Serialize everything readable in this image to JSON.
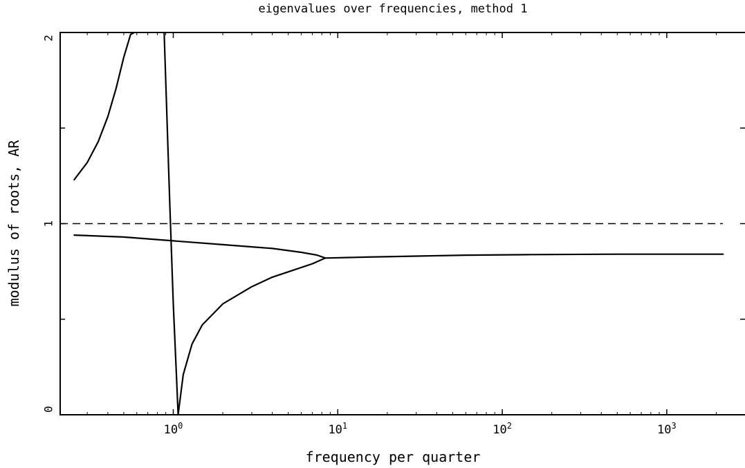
{
  "chart_data": {
    "type": "line",
    "title": "eigenvalues over frequencies, method 1",
    "xlabel": "frequency per quarter",
    "ylabel": "modulus of roots, AR",
    "x_scale": "log",
    "xlim": [
      0.25,
      2400
    ],
    "ylim": [
      0,
      2
    ],
    "x_ticks": [
      {
        "value": 1,
        "label": "10",
        "exp": "0"
      },
      {
        "value": 10,
        "label": "10",
        "exp": "1"
      },
      {
        "value": 100,
        "label": "10",
        "exp": "2"
      },
      {
        "value": 1000,
        "label": "10",
        "exp": "3"
      }
    ],
    "y_ticks": [
      {
        "value": 0,
        "label": "0"
      },
      {
        "value": 1,
        "label": "1"
      },
      {
        "value": 2,
        "label": "2"
      }
    ],
    "y_minor_ticks": [
      0.5,
      1.5
    ],
    "reference_line": {
      "y": 1,
      "style": "dashed"
    },
    "grid": false,
    "series": [
      {
        "x": [
          0.25,
          0.3,
          0.35,
          0.4,
          0.45,
          0.5,
          0.55,
          0.58
        ],
        "y": [
          1.23,
          1.32,
          1.43,
          1.56,
          1.71,
          1.87,
          1.99,
          2.0
        ]
      },
      {
        "x": [
          0.88,
          0.95,
          1.0,
          1.05,
          1.07
        ],
        "y": [
          2.0,
          1.13,
          0.58,
          0.17,
          0.0
        ]
      },
      {
        "x": [
          1.07,
          1.15,
          1.3,
          1.5,
          2.0,
          3.0,
          4.0,
          5.5,
          7.0,
          8.4
        ],
        "y": [
          0.0,
          0.21,
          0.37,
          0.47,
          0.58,
          0.67,
          0.72,
          0.76,
          0.79,
          0.82
        ]
      },
      {
        "x": [
          0.25,
          0.5,
          1.0,
          2.0,
          4.0,
          6.0,
          7.5,
          8.4
        ],
        "y": [
          0.94,
          0.93,
          0.91,
          0.89,
          0.87,
          0.85,
          0.835,
          0.82
        ]
      },
      {
        "x": [
          8.4,
          15,
          30,
          60,
          150,
          500,
          2200
        ],
        "y": [
          0.82,
          0.825,
          0.83,
          0.835,
          0.838,
          0.84,
          0.84
        ]
      }
    ]
  }
}
